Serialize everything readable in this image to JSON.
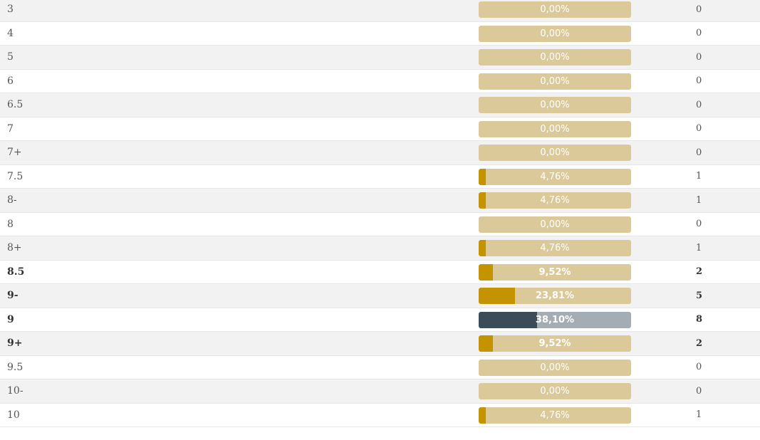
{
  "chart_data": {
    "type": "bar",
    "title": "",
    "xlabel": "",
    "ylabel": "",
    "categories": [
      "3",
      "4",
      "5",
      "6",
      "6.5",
      "7",
      "7+",
      "7.5",
      "8-",
      "8",
      "8+",
      "8.5",
      "9-",
      "9",
      "9+",
      "9.5",
      "10-",
      "10"
    ],
    "series": [
      {
        "values": [
          0,
          0,
          0,
          0,
          0,
          0,
          0,
          4.76,
          4.76,
          0,
          4.76,
          9.52,
          23.81,
          38.1,
          9.52,
          0,
          0,
          4.76
        ]
      }
    ],
    "percent_labels": [
      "0,00%",
      "0,00%",
      "0,00%",
      "0,00%",
      "0,00%",
      "0,00%",
      "0,00%",
      "4,76%",
      "4,76%",
      "0,00%",
      "4,76%",
      "9,52%",
      "23,81%",
      "38,10%",
      "9,52%",
      "0,00%",
      "0,00%",
      "4,76%"
    ],
    "counts": [
      "0",
      "0",
      "0",
      "0",
      "0",
      "0",
      "0",
      "1",
      "1",
      "0",
      "1",
      "2",
      "5",
      "8",
      "2",
      "0",
      "0",
      "1"
    ],
    "bold": [
      false,
      false,
      false,
      false,
      false,
      false,
      false,
      false,
      false,
      false,
      false,
      true,
      true,
      true,
      true,
      false,
      false,
      false
    ],
    "highlight_index": 13,
    "xlim": [
      0,
      100
    ],
    "grid": false,
    "orientation": "horizontal",
    "colors": {
      "bar_track": "#dcc99a",
      "bar_fill": "#c49400",
      "highlight_track": "#a4adb4",
      "highlight_fill": "#3b4b58",
      "row_odd": "#f2f2f2",
      "row_even": "#ffffff"
    }
  }
}
